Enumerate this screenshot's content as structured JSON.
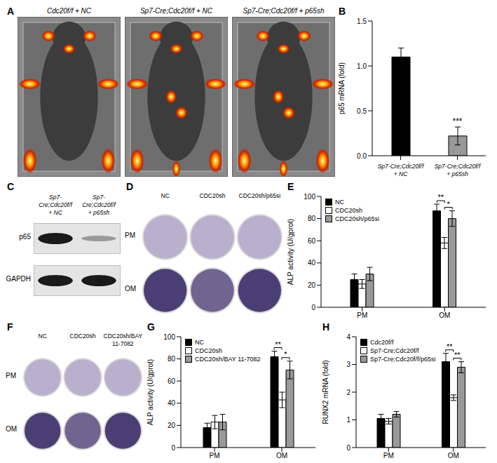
{
  "chart_data": [
    {
      "title": "B",
      "type": "bar",
      "categories": [
        "Sp7-Cre;Cdc20f/f + NC",
        "Sp7-Cre;Cdc20f/f + p65sh"
      ],
      "values": [
        1.1,
        0.22
      ],
      "errors": [
        0.1,
        0.1
      ],
      "colors": [
        "#000000",
        "#999999"
      ],
      "y_label": "p65 mRNA (fold)",
      "ylim": [
        0,
        1.5
      ],
      "yticks": [
        {
          "value": 0,
          "label": "0.0"
        },
        {
          "value": 0.5,
          "label": "0.5"
        },
        {
          "value": 1,
          "label": "1.0"
        },
        {
          "value": 1.5,
          "label": "1.5"
        }
      ],
      "annotations": [
        {
          "text": "***",
          "category": "Sp7-Cre;Cdc20f/f + p65sh"
        }
      ]
    },
    {
      "title": "E",
      "type": "bar",
      "categories": [
        "PM",
        "OM"
      ],
      "series": [
        {
          "name": "NC",
          "color": "#000000",
          "values": [
            25,
            87
          ],
          "errors": [
            5,
            6
          ]
        },
        {
          "name": "CDC20sh",
          "color": "#ffffff",
          "values": [
            21,
            58
          ],
          "errors": [
            4,
            5
          ]
        },
        {
          "name": "CDC20sh/p65si",
          "color": "#999999",
          "values": [
            30,
            80
          ],
          "errors": [
            6,
            7
          ]
        }
      ],
      "y_label": "ALP activity (U/gprot)",
      "ylim": [
        0,
        100
      ],
      "yticks": [
        0,
        20,
        40,
        60,
        80,
        100
      ],
      "legend": "upper left",
      "annotations": [
        {
          "text": "**",
          "category": "OM",
          "between": [
            "NC",
            "CDC20sh"
          ]
        },
        {
          "text": "*",
          "category": "OM",
          "between": [
            "CDC20sh",
            "CDC20sh/p65si"
          ]
        }
      ]
    },
    {
      "title": "G",
      "type": "bar",
      "categories": [
        "PM",
        "OM"
      ],
      "series": [
        {
          "name": "NC",
          "color": "#000000",
          "values": [
            18,
            82
          ],
          "errors": [
            4,
            5
          ]
        },
        {
          "name": "CDC20sh",
          "color": "#ffffff",
          "values": [
            23,
            43
          ],
          "errors": [
            6,
            7
          ]
        },
        {
          "name": "CDC20sh/BAY 11-7082",
          "color": "#999999",
          "values": [
            23,
            70
          ],
          "errors": [
            7,
            8
          ]
        }
      ],
      "y_label": "ALP activity (U/gprot)",
      "ylim": [
        0,
        100
      ],
      "yticks": [
        0,
        20,
        40,
        60,
        80,
        100
      ],
      "legend": "upper left",
      "annotations": [
        {
          "text": "**",
          "category": "OM",
          "between": [
            "NC",
            "CDC20sh"
          ]
        },
        {
          "text": "*",
          "category": "OM",
          "between": [
            "CDC20sh",
            "CDC20sh/BAY 11-7082"
          ]
        }
      ]
    },
    {
      "title": "H",
      "type": "bar",
      "categories": [
        "PM",
        "OM"
      ],
      "series": [
        {
          "name": "Cdc20f/f",
          "color": "#000000",
          "values": [
            1.05,
            3.1
          ],
          "errors": [
            0.15,
            0.3
          ]
        },
        {
          "name": "Sp7-Cre;Cdc20f/f",
          "color": "#ffffff",
          "values": [
            0.95,
            1.8
          ],
          "errors": [
            0.1,
            0.1
          ]
        },
        {
          "name": "Sp7-Cre;Cdc20f/f/p65si",
          "color": "#999999",
          "values": [
            1.2,
            2.9
          ],
          "errors": [
            0.1,
            0.2
          ]
        }
      ],
      "y_label": "RUNX2 mRNA (fold)",
      "ylim": [
        0,
        4
      ],
      "yticks": [
        0,
        1,
        2,
        3,
        4
      ],
      "legend": "upper left",
      "annotations": [
        {
          "text": "**",
          "category": "OM",
          "between": [
            "Cdc20f/f",
            "Sp7-Cre;Cdc20f/f"
          ]
        },
        {
          "text": "**",
          "category": "OM",
          "between": [
            "Sp7-Cre;Cdc20f/f",
            "Sp7-Cre;Cdc20f/f/p65si"
          ]
        }
      ]
    }
  ],
  "images": {
    "A": {
      "title": "A",
      "panels": [
        "Cdc20f/f + NC",
        "Sp7-Cre;Cdc20f/f + NC",
        "Sp7-Cre;Cdc20f/f + p65sh"
      ]
    },
    "C": {
      "title": "C",
      "columns": [
        "Sp7-Cre;Cdc20f/f + NC",
        "Sp7-Cre;Cdc20f/f + p65sh"
      ],
      "rows": [
        "p65",
        "GAPDH"
      ]
    },
    "D": {
      "title": "D",
      "columns": [
        "NC",
        "CDC20sh",
        "CDC20sh/p65si"
      ],
      "rows": [
        "PM",
        "OM"
      ]
    },
    "F": {
      "title": "F",
      "columns": [
        "NC",
        "CDC20sh",
        "CDC20sh/BAY 11-7082"
      ],
      "rows": [
        "PM",
        "OM"
      ]
    }
  }
}
